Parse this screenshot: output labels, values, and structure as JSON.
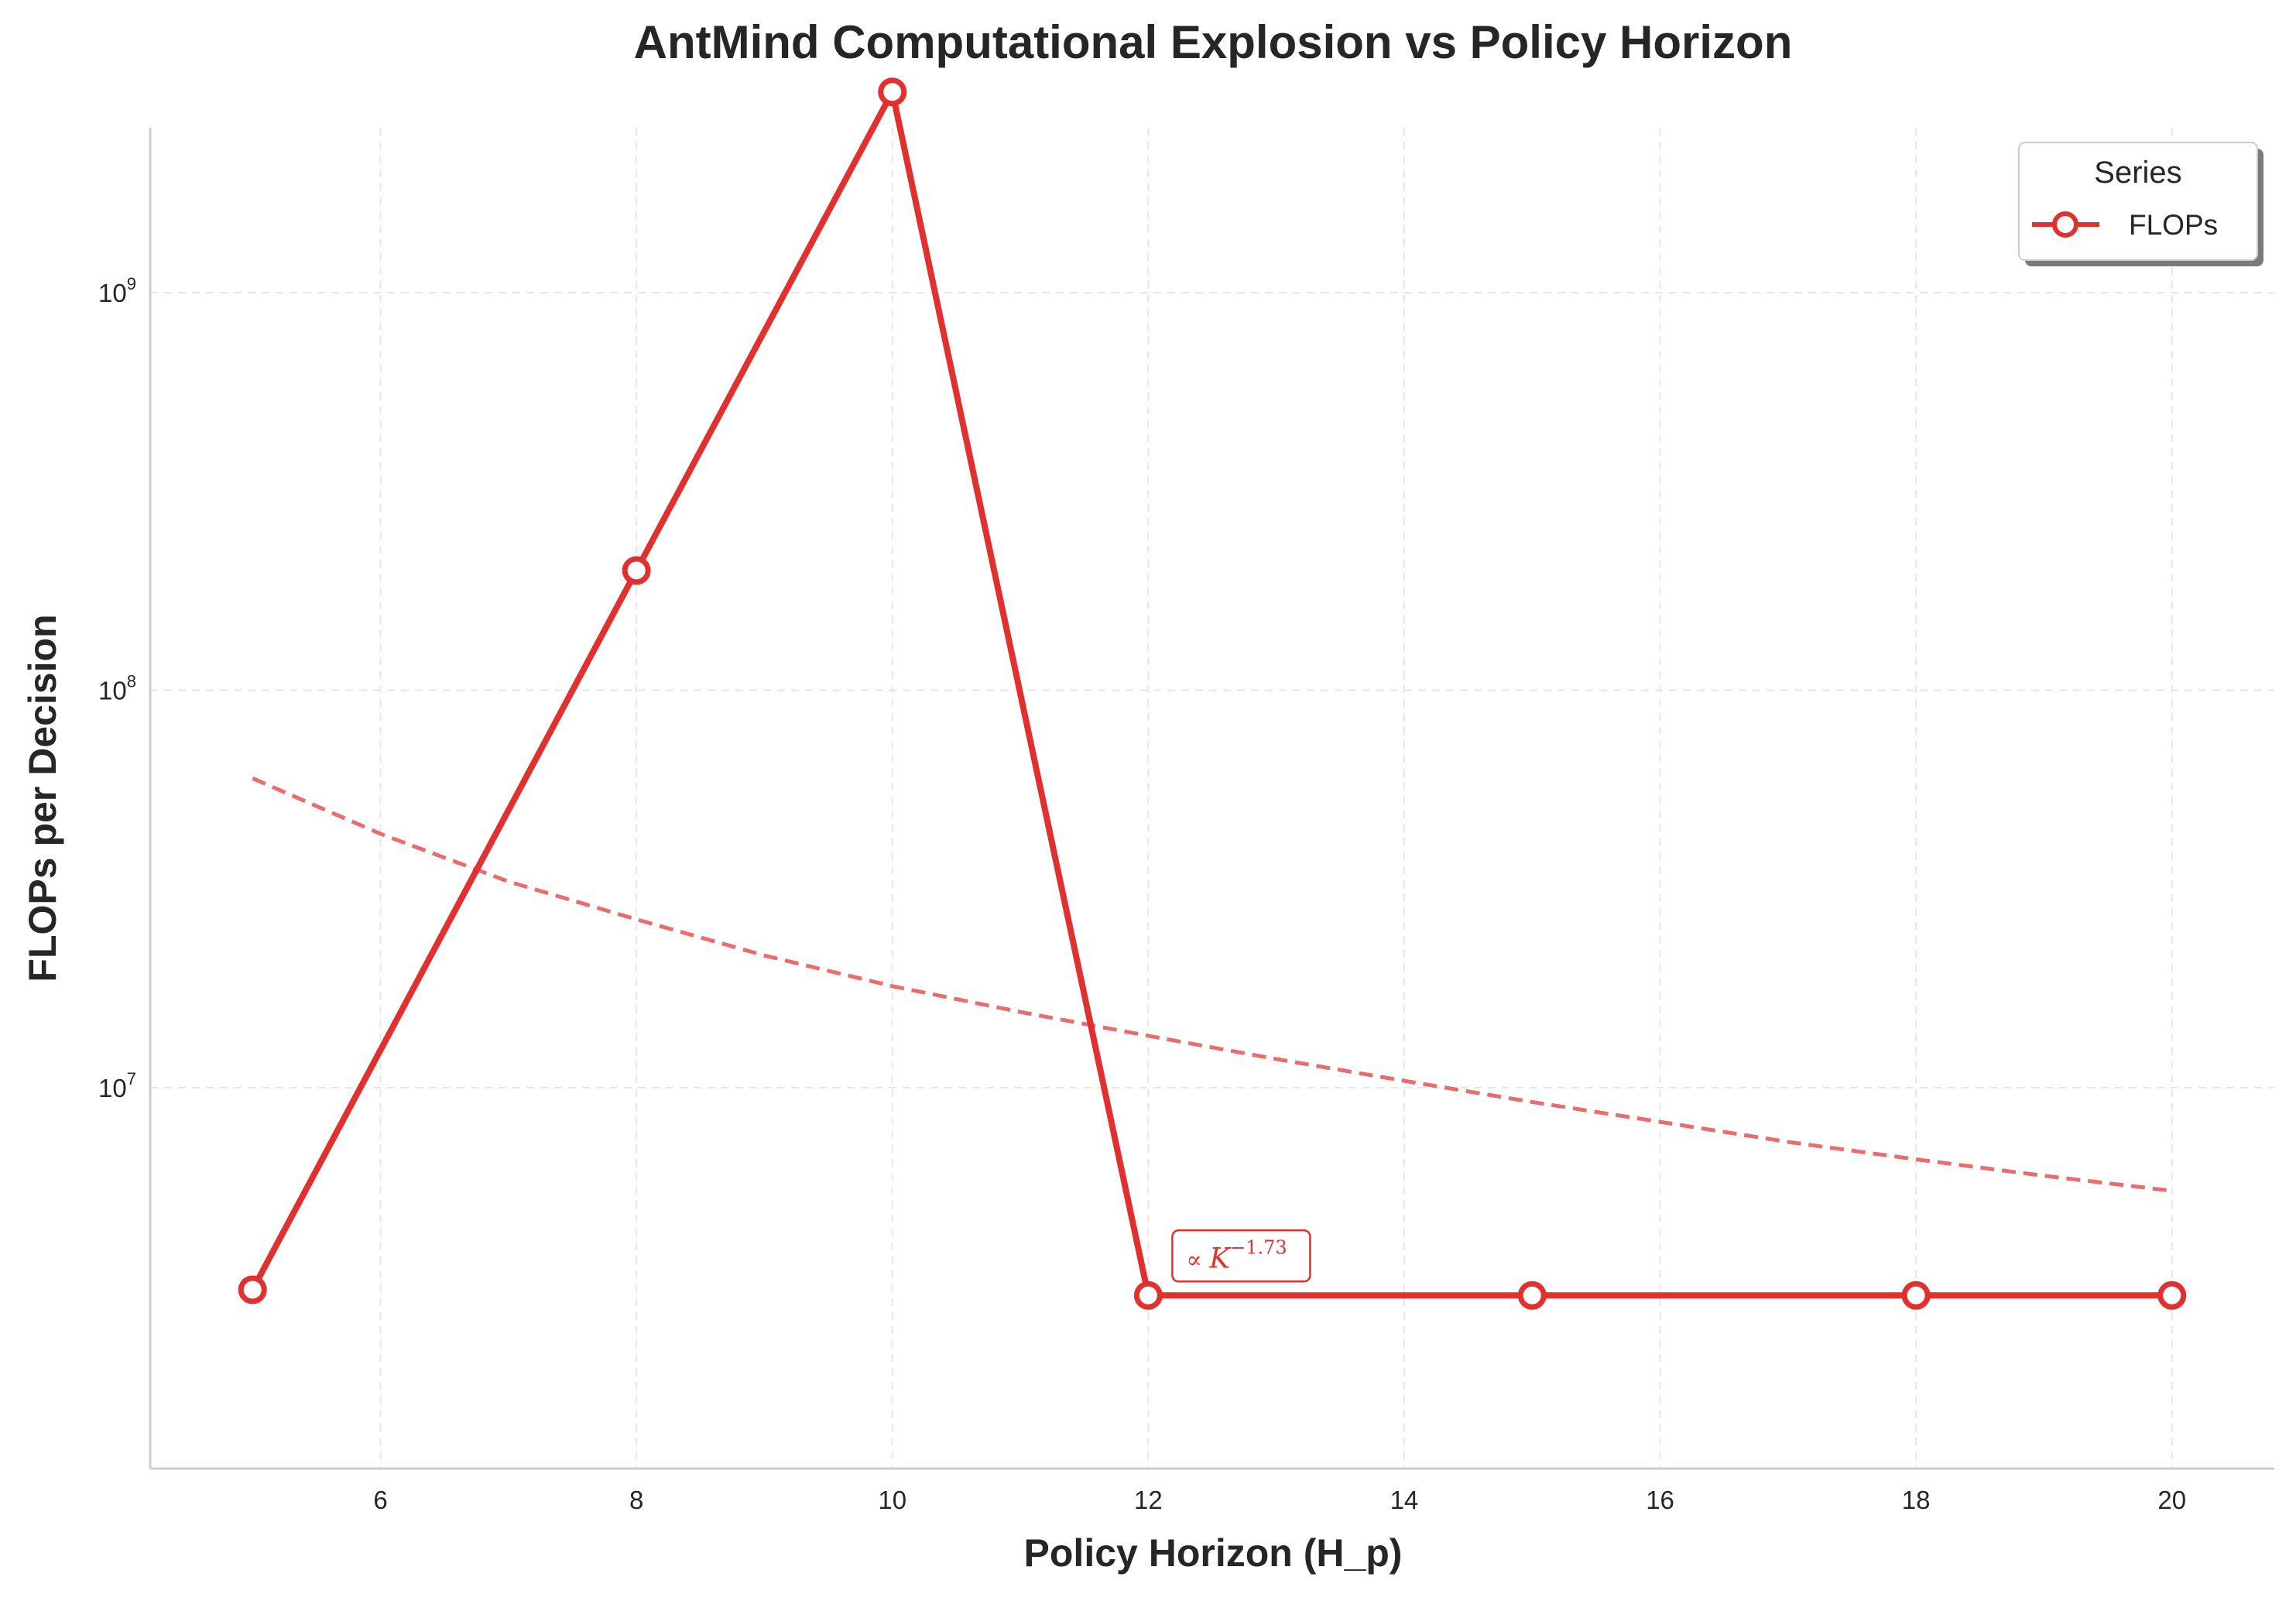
{
  "chart_data": {
    "type": "line",
    "title": "AntMind Computational Explosion vs Policy Horizon",
    "xlabel": "Policy Horizon (H_p)",
    "ylabel": "FLOPs per Decision",
    "yscale": "log",
    "xlim": [
      4.2,
      20.8
    ],
    "ylim": [
      1100000.0,
      2600000000.0
    ],
    "xticks": [
      6,
      8,
      10,
      12,
      14,
      16,
      18,
      20
    ],
    "yticks": [
      {
        "value": 10000000,
        "base": "10",
        "exp": "7"
      },
      {
        "value": 100000000,
        "base": "10",
        "exp": "8"
      },
      {
        "value": 1000000000,
        "base": "10",
        "exp": "9"
      }
    ],
    "grid": true,
    "legend": {
      "title": "Series",
      "placement": "top-right"
    },
    "series": [
      {
        "name": "FLOPs",
        "color": "#e0312f",
        "x": [
          5,
          8,
          10,
          12,
          15,
          18,
          20
        ],
        "y": [
          3100000,
          200000000,
          3200000000,
          3000000,
          3000000,
          3000000,
          3000000
        ]
      }
    ],
    "fit_line": {
      "color": "#ea6c6c",
      "style": "dashed",
      "x": [
        5,
        6,
        7,
        8,
        9,
        10,
        11,
        12,
        13,
        14,
        15,
        16,
        17,
        18,
        19,
        20
      ],
      "y": [
        60000000,
        43500000,
        33000000,
        26500000,
        21500000,
        18000000,
        15500000,
        13500000,
        11800000,
        10400000,
        9200000,
        8200000,
        7300000,
        6600000,
        6000000,
        5500000
      ]
    },
    "annotation": {
      "prefix": "∝ ",
      "base": "K",
      "exponent": "−1.73",
      "x": 12.2,
      "y": 3000000,
      "color": "#e0312f"
    }
  }
}
